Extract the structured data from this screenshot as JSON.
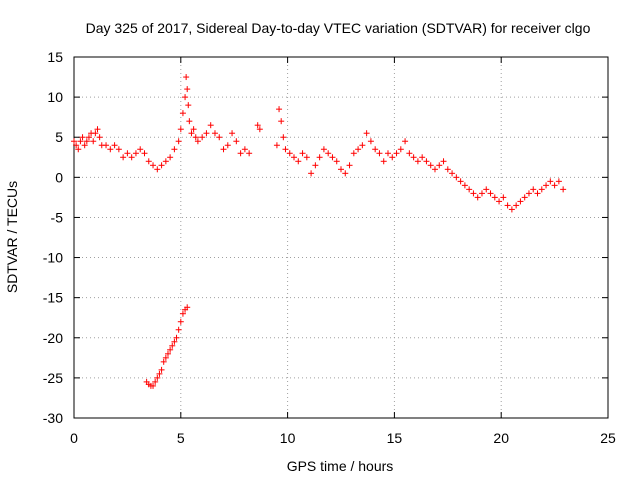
{
  "chart_data": {
    "type": "scatter",
    "title": "Day 325 of 2017, Sidereal Day-to-day VTEC variation (SDTVAR) for receiver clgo",
    "xlabel": "GPS time / hours",
    "ylabel": "SDTVAR / TECUs",
    "xlim": [
      0,
      25
    ],
    "ylim": [
      -30,
      15
    ],
    "xticks": [
      "0",
      "5",
      "10",
      "15",
      "20",
      "25"
    ],
    "yticks": [
      "15",
      "10",
      "5",
      "0",
      "-5",
      "-10",
      "-15",
      "-20",
      "-25",
      "-30"
    ],
    "grid": true,
    "marker": "+",
    "series_color": "#ff0000",
    "series": [
      {
        "name": "SDTVAR",
        "x": [
          0.0,
          0.1,
          0.2,
          0.3,
          0.4,
          0.5,
          0.6,
          0.7,
          0.8,
          0.9,
          1.0,
          1.1,
          1.2,
          1.3,
          1.5,
          1.7,
          1.9,
          2.1,
          2.3,
          2.5,
          2.7,
          2.9,
          3.1,
          3.3,
          3.5,
          3.7,
          3.9,
          4.1,
          4.3,
          4.5,
          4.7,
          4.9,
          5.0,
          5.1,
          5.2,
          5.25,
          5.3,
          5.35,
          5.4,
          5.5,
          5.6,
          5.7,
          5.8,
          6.0,
          6.2,
          6.4,
          6.6,
          6.8,
          7.0,
          7.2,
          7.4,
          7.6,
          7.8,
          8.0,
          8.2,
          8.6,
          8.7,
          9.5,
          9.6,
          9.7,
          9.8,
          9.9,
          10.1,
          10.3,
          10.5,
          10.7,
          10.9,
          11.1,
          11.3,
          11.5,
          11.7,
          11.9,
          12.1,
          12.3,
          12.5,
          12.7,
          12.9,
          13.1,
          13.3,
          13.5,
          13.7,
          13.9,
          14.1,
          14.3,
          14.5,
          14.7,
          14.9,
          15.1,
          15.3,
          15.5,
          15.7,
          15.9,
          16.1,
          16.3,
          16.5,
          16.7,
          16.9,
          17.1,
          17.3,
          17.5,
          17.7,
          17.9,
          18.1,
          18.3,
          18.5,
          18.7,
          18.9,
          19.1,
          19.3,
          19.5,
          19.7,
          19.9,
          20.1,
          20.3,
          20.5,
          20.7,
          20.9,
          21.1,
          21.3,
          21.5,
          21.7,
          21.9,
          22.1,
          22.3,
          22.5,
          22.7,
          22.9,
          3.4,
          3.5,
          3.6,
          3.7,
          3.8,
          3.9,
          4.0,
          4.1,
          4.2,
          4.3,
          4.4,
          4.5,
          4.6,
          4.7,
          4.8,
          4.9,
          5.0,
          5.1,
          5.2,
          5.3
        ],
        "y": [
          4.5,
          4.0,
          3.5,
          4.5,
          5.0,
          4.0,
          4.5,
          5.0,
          5.5,
          4.5,
          5.5,
          6.0,
          5.0,
          4.0,
          4.0,
          3.5,
          4.0,
          3.5,
          2.5,
          3.0,
          2.5,
          3.0,
          3.5,
          3.0,
          2.0,
          1.5,
          1.0,
          1.5,
          2.0,
          2.5,
          3.5,
          4.5,
          6.0,
          8.0,
          10.0,
          12.5,
          11.0,
          9.0,
          7.0,
          5.5,
          6.0,
          5.0,
          4.5,
          5.0,
          5.5,
          6.5,
          5.5,
          5.0,
          3.5,
          4.0,
          5.5,
          4.5,
          3.0,
          3.5,
          3.0,
          6.5,
          6.0,
          4.0,
          8.5,
          7.0,
          5.0,
          3.5,
          3.0,
          2.5,
          2.0,
          3.0,
          2.5,
          0.5,
          1.5,
          2.5,
          3.5,
          3.0,
          2.5,
          2.0,
          1.0,
          0.5,
          1.5,
          3.0,
          3.5,
          4.0,
          5.5,
          4.5,
          3.5,
          3.0,
          2.0,
          3.0,
          2.5,
          3.0,
          3.5,
          4.5,
          3.0,
          2.5,
          2.0,
          2.5,
          2.0,
          1.5,
          1.0,
          1.5,
          2.0,
          1.0,
          0.5,
          0.0,
          -0.5,
          -1.0,
          -1.5,
          -2.0,
          -2.5,
          -2.0,
          -1.5,
          -2.0,
          -2.5,
          -3.0,
          -2.5,
          -3.5,
          -4.0,
          -3.5,
          -3.0,
          -2.5,
          -2.0,
          -1.5,
          -2.0,
          -1.5,
          -1.0,
          -0.5,
          -1.0,
          -0.5,
          -1.5,
          -25.5,
          -25.8,
          -26.0,
          -26.0,
          -25.5,
          -25.0,
          -24.5,
          -24.0,
          -23.0,
          -22.5,
          -22.0,
          -21.5,
          -21.0,
          -20.5,
          -20.0,
          -19.0,
          -18.0,
          -17.0,
          -16.5,
          -16.2
        ]
      }
    ]
  }
}
